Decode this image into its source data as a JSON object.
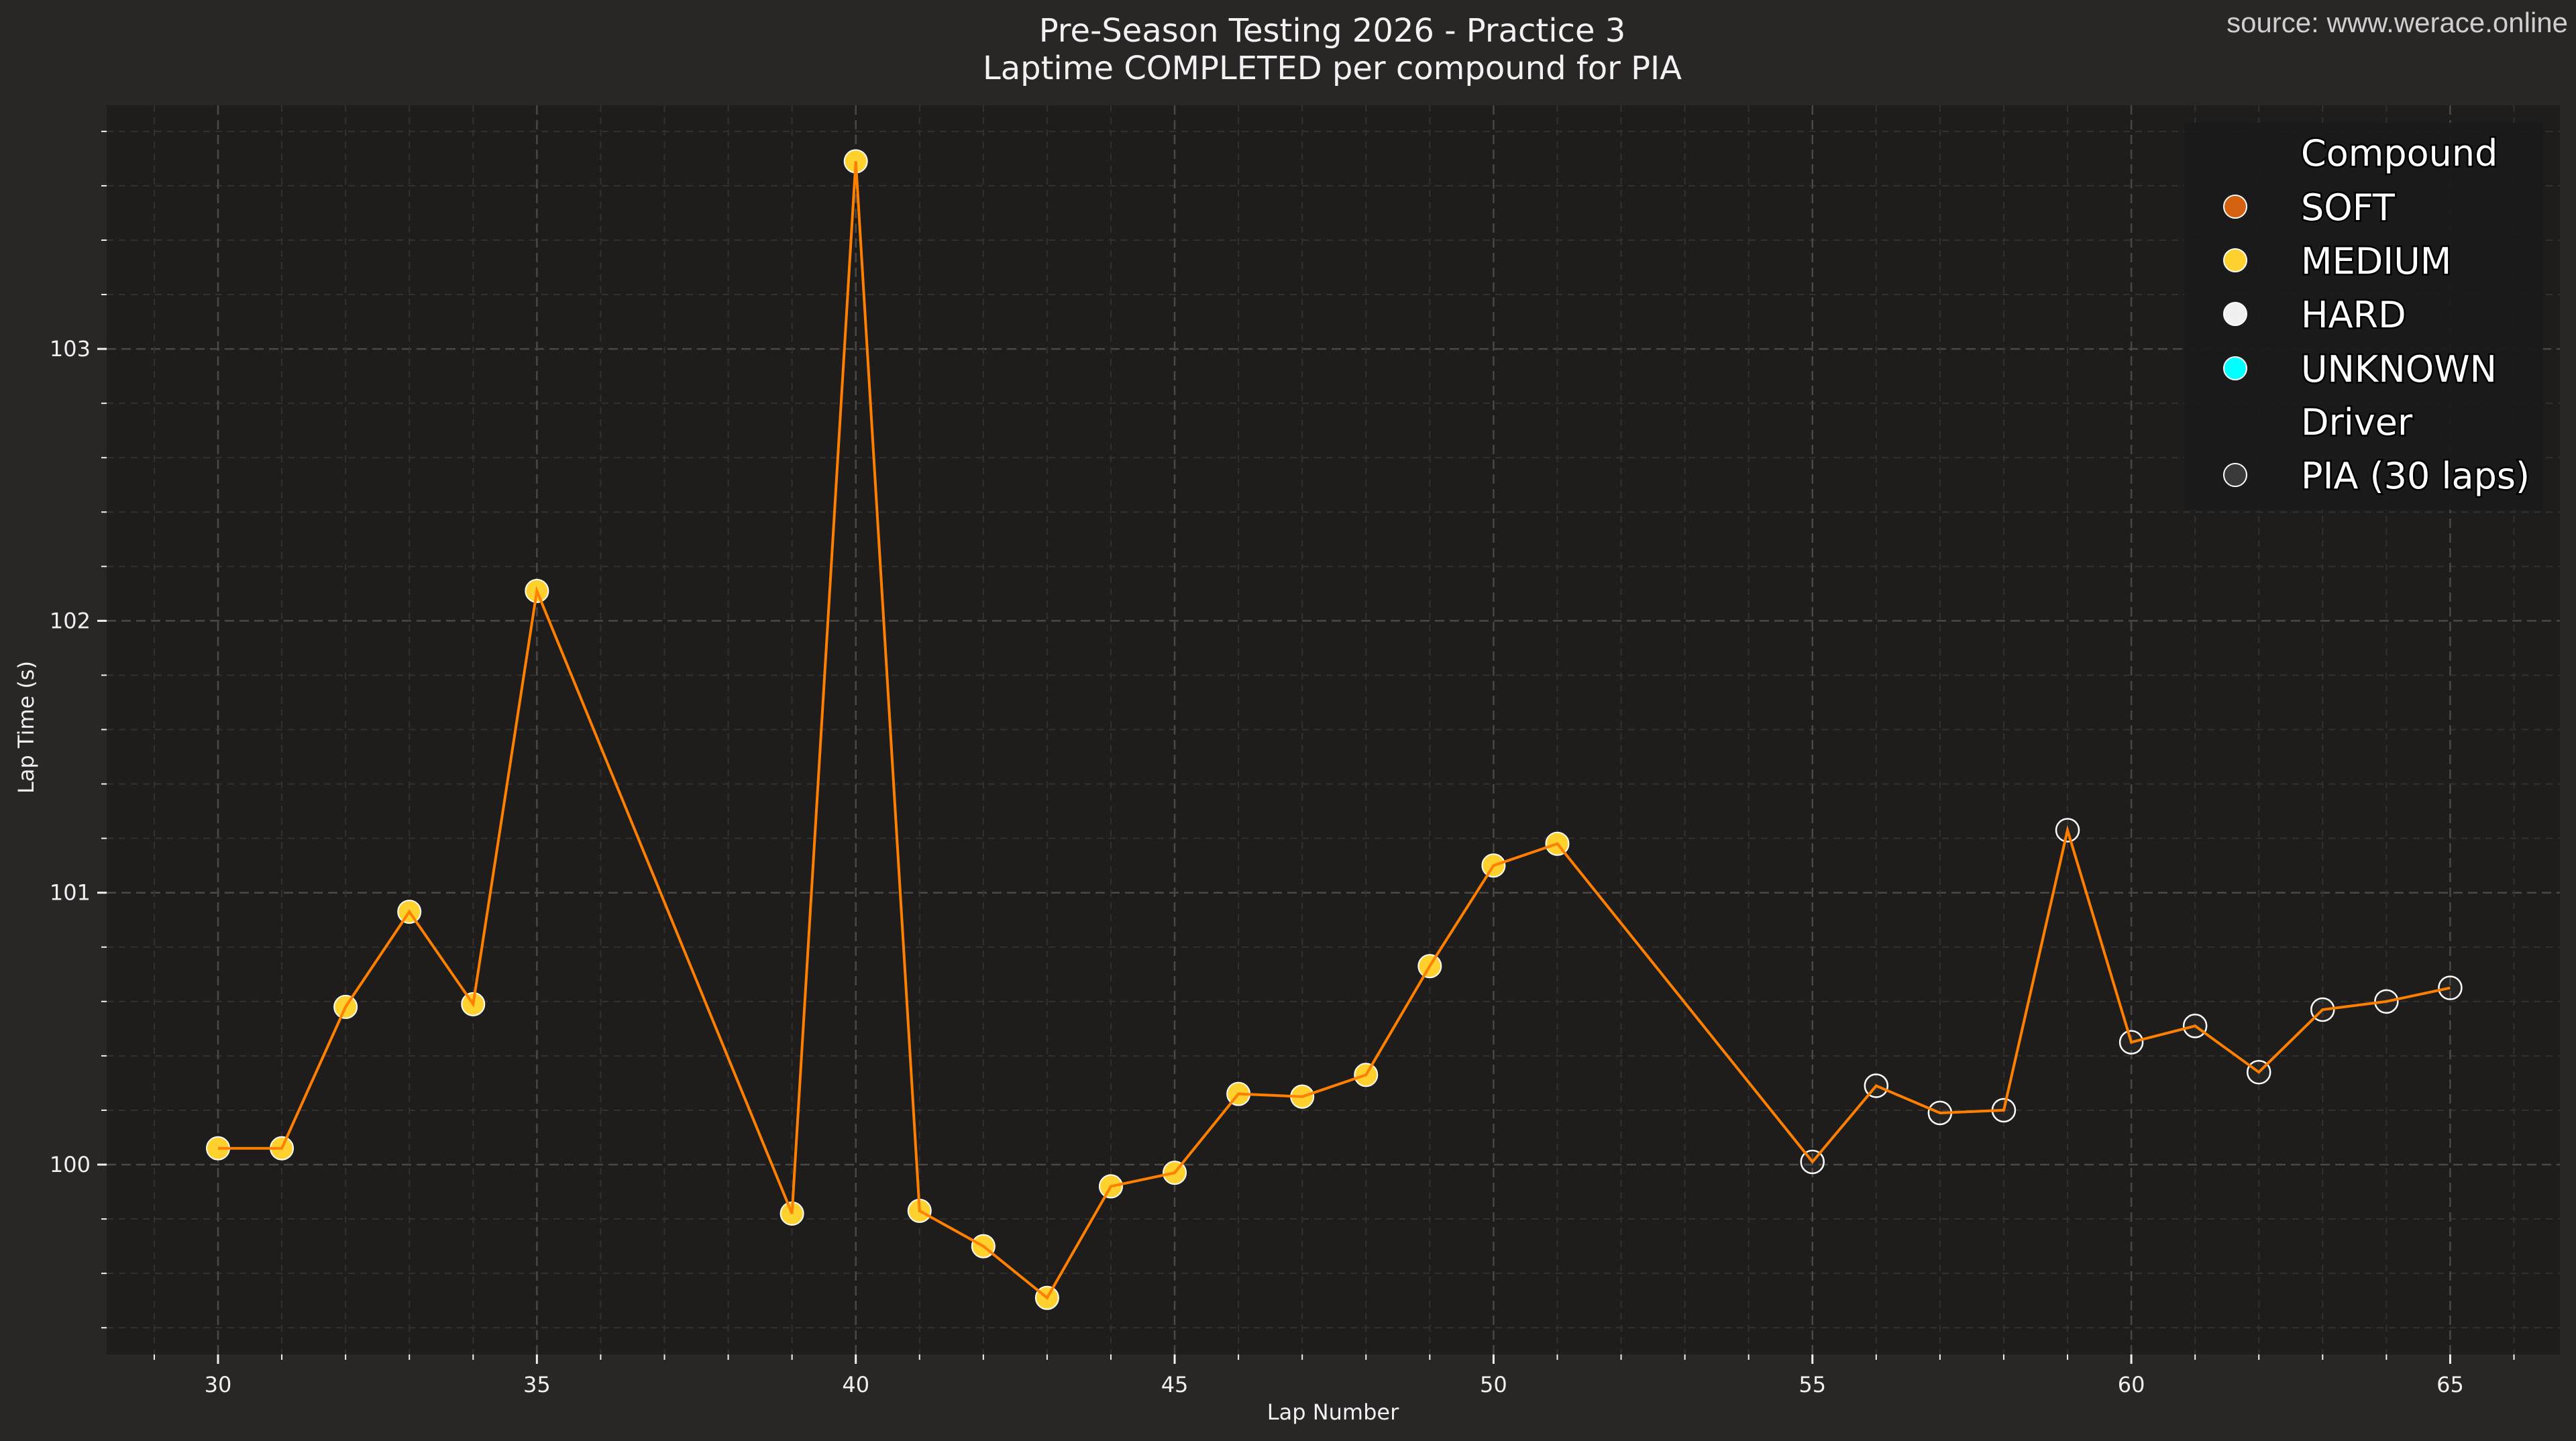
{
  "header": {
    "title_line1": "Pre-Season Testing 2026 - Practice 3",
    "title_line2": "Laptime COMPLETED per compound for PIA",
    "source": "source: www.werace.online"
  },
  "axes": {
    "xlabel": "Lap Number",
    "ylabel": "Lap Time (s)",
    "x_ticks": [
      30,
      35,
      40,
      45,
      50,
      55,
      60,
      65
    ],
    "y_ticks": [
      100,
      101,
      102,
      103
    ]
  },
  "legend": {
    "compound_title": "Compound",
    "compounds": [
      {
        "label": "SOFT",
        "color": "#d4610f"
      },
      {
        "label": "MEDIUM",
        "color": "#ffd12e"
      },
      {
        "label": "HARD",
        "color": "#f0f0f0"
      },
      {
        "label": "UNKNOWN",
        "color": "#00ffff"
      }
    ],
    "driver_title": "Driver",
    "driver": {
      "label": "PIA (30 laps)",
      "color": "#3a3a3a"
    }
  },
  "colors": {
    "figure_bg": "#292625",
    "plot_bg": "#1e1d1c",
    "line": "#ff8000",
    "grid_major": "#4a4846",
    "grid_minor": "#333130",
    "marker_edge": "#ffffff",
    "legend_bg": "#1a1a1a"
  },
  "chart_data": {
    "type": "line",
    "title": "Pre-Season Testing 2026 - Practice 3 — Laptime COMPLETED per compound for PIA",
    "xlabel": "Lap Number",
    "ylabel": "Lap Time (s)",
    "xlim": [
      28.3,
      66.7
    ],
    "ylim": [
      99.3,
      103.9
    ],
    "grid": true,
    "legend_position": "upper right",
    "series": [
      {
        "name": "PIA (30 laps)",
        "x": [
          30,
          31,
          32,
          33,
          34,
          35,
          39,
          40,
          41,
          42,
          43,
          44,
          45,
          46,
          47,
          48,
          49,
          50,
          51,
          55,
          56,
          57,
          58,
          59,
          60,
          61,
          62,
          63,
          64,
          65
        ],
        "values": [
          100.06,
          100.06,
          100.58,
          100.93,
          100.59,
          102.11,
          99.82,
          103.69,
          99.83,
          99.7,
          99.51,
          99.92,
          99.97,
          100.26,
          100.25,
          100.33,
          100.73,
          101.1,
          101.18,
          100.01,
          100.29,
          100.19,
          100.2,
          101.23,
          100.45,
          100.51,
          100.34,
          100.57,
          100.6,
          100.65
        ],
        "compound": [
          "MEDIUM",
          "MEDIUM",
          "MEDIUM",
          "MEDIUM",
          "MEDIUM",
          "MEDIUM",
          "MEDIUM",
          "MEDIUM",
          "MEDIUM",
          "MEDIUM",
          "MEDIUM",
          "MEDIUM",
          "MEDIUM",
          "MEDIUM",
          "MEDIUM",
          "MEDIUM",
          "MEDIUM",
          "MEDIUM",
          "MEDIUM",
          "HARD",
          "HARD",
          "HARD",
          "HARD",
          "HARD",
          "HARD",
          "HARD",
          "HARD",
          "HARD",
          "HARD",
          "HARD"
        ]
      }
    ]
  }
}
